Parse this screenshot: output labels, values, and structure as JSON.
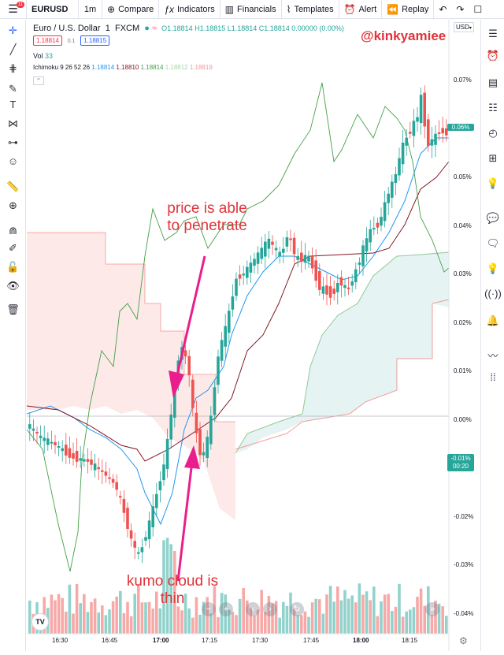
{
  "toolbar": {
    "menu_badge": "11",
    "symbol": "EURUSD",
    "interval": "1m",
    "compare": "Compare",
    "indicators": "Indicators",
    "financials": "Financials",
    "templates": "Templates",
    "alert": "Alert",
    "replay": "Replay"
  },
  "legend": {
    "title": "Euro / U.S. Dollar",
    "interval": "1",
    "exchange": "FXCM",
    "ohlc": "O1.18814 H1.18815 L1.18814 C1.18814 0.00000 (0.00%)",
    "bid": "1.18814",
    "spread": "0.1",
    "ask": "1.18815",
    "vol_label": "Vol",
    "vol_value": "33",
    "ichimoku_label": "Ichimoku 9 26 52 26",
    "ichimoku_values": [
      "1.18814",
      "1.18810",
      "1.18814",
      "1.18812",
      "1.18819"
    ],
    "ichimoku_colors": [
      "#2196f3",
      "#801922",
      "#43a047",
      "#a5d6a7",
      "#ef9a9a"
    ]
  },
  "currency": "USD",
  "watermark": "@kinkyamiee",
  "annotations": {
    "top_line1": "price is able",
    "top_line2": "to penetrate",
    "bottom_line1": "kumo cloud is",
    "bottom_line2": "thin"
  },
  "price_axis": {
    "labels": [
      "0.07%",
      "0.06%",
      "0.05%",
      "0.04%",
      "0.03%",
      "0.02%",
      "0.01%",
      "0.00%",
      "-0.01%",
      "-0.02%",
      "-0.03%",
      "-0.04%"
    ],
    "current_tag": "0.06%",
    "countdown_tag_value": "-0.01%",
    "countdown_tag_time": "00:20"
  },
  "time_axis": {
    "labels": [
      "16:30",
      "16:45",
      "17:00",
      "17:15",
      "17:30",
      "17:45",
      "18:00",
      "18:15"
    ]
  },
  "nav_icons": [
    "zoom-out-icon",
    "zoom-in-icon",
    "scroll-left-icon",
    "scroll-right-icon",
    "reset-icon"
  ],
  "colors": {
    "up": "#26a69a",
    "down": "#ef5350",
    "accent": "#e0343a",
    "arrow": "#e91e8c",
    "tag_green": "#26a69a"
  }
}
